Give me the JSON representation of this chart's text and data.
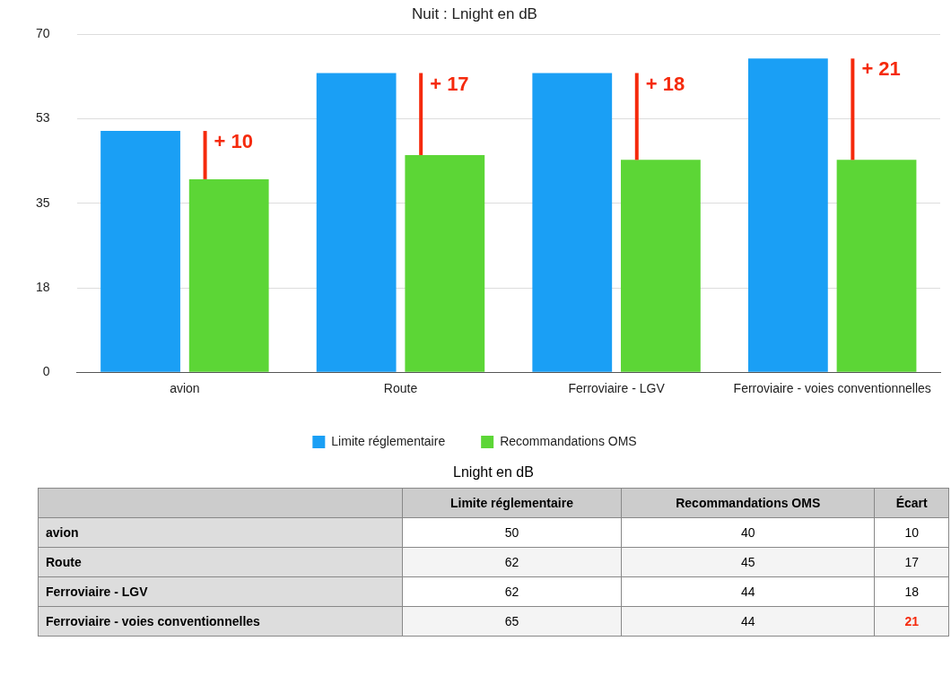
{
  "chart_data": [
    {
      "type": "bar",
      "title": "Nuit : Lnight en dB",
      "categories": [
        "avion",
        "Route",
        "Ferroviaire - LGV",
        "Ferroviaire - voies conventionnelles"
      ],
      "series": [
        {
          "name": "Limite réglementaire",
          "color": "#1a9ff5",
          "values": [
            50,
            62,
            62,
            65
          ]
        },
        {
          "name": "Recommandations OMS",
          "color": "#5cd636",
          "values": [
            40,
            45,
            44,
            44
          ],
          "errors": [
            [
              40,
              50
            ],
            [
              45,
              62
            ],
            [
              44,
              62
            ],
            [
              44,
              65
            ]
          ]
        }
      ],
      "ylim": [
        0,
        70
      ],
      "yticks": [
        0,
        {
          "value": 17.5,
          "label": "18"
        },
        35,
        {
          "value": 52.5,
          "label": "53"
        },
        70
      ],
      "grid": "y",
      "legend": "bottom",
      "annotations": [
        {
          "text": "+ 10",
          "x": "avion",
          "y": 50
        },
        {
          "text": "+ 17",
          "x": "Route",
          "y": 62
        },
        {
          "text": "+ 18",
          "x": "Ferroviaire - LGV",
          "y": 62
        },
        {
          "text": "+ 21",
          "x": "Ferroviaire - voies conventionnelles",
          "y": 65
        }
      ]
    },
    {
      "type": "other",
      "title": "Lnight en dB",
      "categories": [
        "Limite réglementaire",
        "Recommandations OMS",
        "Écart"
      ],
      "y_categories": [
        "avion",
        "Route",
        "Ferroviaire - LGV",
        "Ferroviaire - voies conventionnelles"
      ],
      "cell_labels": [
        [
          "50",
          "40",
          "10"
        ],
        [
          "62",
          "45",
          "17"
        ],
        [
          "62",
          "44",
          "18"
        ],
        [
          "65",
          "44",
          "21"
        ]
      ]
    }
  ]
}
